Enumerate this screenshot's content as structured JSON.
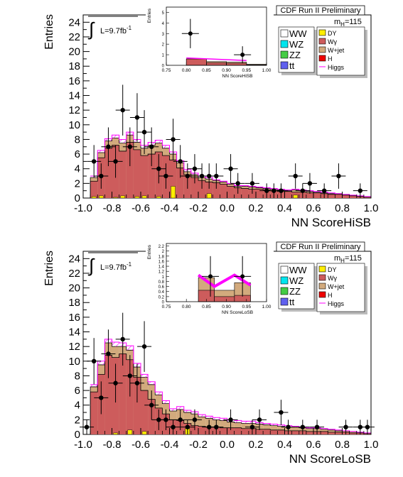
{
  "panels": [
    {
      "header": "CDF Run II Preliminary",
      "lumi_label": "L=9.7fb",
      "lumi_sup": "-1",
      "mass_label": "m",
      "mass_sub": "H",
      "mass_value": "=115",
      "legend_left": [
        "WW",
        "WZ",
        "ZZ",
        "tt"
      ],
      "legend_right": [
        "DY",
        "Wγ",
        "W+jet",
        "H",
        "Higgs"
      ]
    },
    {
      "header": "CDF Run II Preliminary",
      "lumi_label": "L=9.7fb",
      "lumi_sup": "-1",
      "mass_label": "m",
      "mass_sub": "H",
      "mass_value": "=115",
      "legend_left": [
        "WW",
        "WZ",
        "ZZ",
        "tt"
      ],
      "legend_right": [
        "DY",
        "Wγ",
        "W+jet",
        "H",
        "Higgs"
      ]
    }
  ],
  "colors": {
    "ww": "#ffffff",
    "wz": "#00e5ee",
    "zz": "#44cc44",
    "tt": "#6060ee",
    "dy": "#ffee00",
    "wgamma": "#cd5c5c",
    "wjet": "#d2aa7d",
    "h": "#ee0000",
    "higgs": "#ff00ff"
  },
  "chart_data": [
    {
      "type": "histogram",
      "ylabel": "Entries",
      "xlabel": "NN ScoreHiSB",
      "xlim": [
        -1.0,
        1.0
      ],
      "ylim": [
        0,
        25
      ],
      "yticks": [
        "0",
        "2",
        "4",
        "6",
        "8",
        "10",
        "12",
        "14",
        "16",
        "18",
        "20",
        "22",
        "24"
      ],
      "xticks": [
        "-1.0",
        "-0.8",
        "-0.6",
        "-0.4",
        "-0.2",
        "0.0",
        "0.2",
        "0.4",
        "0.6",
        "0.8",
        "1.0"
      ],
      "bin_edges_start": -0.95,
      "bin_width": 0.05,
      "series": [
        {
          "name": "Wγ",
          "values": [
            2.3,
            5.5,
            6.8,
            7.2,
            6.4,
            7.6,
            6.6,
            5.8,
            6.0,
            6.3,
            5.8,
            5.2,
            4.1,
            3.2,
            2.8,
            2.4,
            2.2,
            2.1,
            1.9,
            1.6,
            1.4,
            1.3,
            1.2,
            1.2,
            1.1,
            1.0,
            0.9,
            0.9,
            0.8,
            0.8,
            0.7,
            0.7,
            0.6,
            0.5,
            0.5,
            0.4,
            0.3,
            0.2,
            0.1
          ]
        },
        {
          "name": "DY",
          "values": [
            0.2,
            0.3,
            0,
            0.1,
            0.3,
            0,
            0.2,
            0.3,
            0,
            0.2,
            0,
            1.6,
            0,
            0,
            0,
            0,
            0.6,
            0,
            0,
            0,
            0,
            0,
            0,
            0,
            0,
            0,
            0,
            0,
            0.4,
            0,
            0,
            0,
            0,
            0,
            0,
            0,
            0,
            0,
            0
          ]
        },
        {
          "name": "Total",
          "values": [
            2.8,
            6.2,
            7.8,
            8.2,
            7.5,
            8.6,
            7.6,
            6.8,
            7.2,
            7.5,
            6.8,
            6.0,
            4.8,
            3.6,
            3.2,
            2.8,
            2.6,
            2.4,
            2.2,
            1.9,
            1.6,
            1.6,
            1.5,
            1.4,
            1.3,
            1.2,
            1.1,
            1.0,
            1.1,
            1.0,
            0.9,
            0.8,
            0.7,
            0.6,
            0.6,
            0.5,
            0.4,
            0.3,
            0.2
          ]
        },
        {
          "name": "Higgs",
          "values": [
            3.0,
            6.5,
            8.1,
            8.6,
            8.0,
            9.0,
            8.0,
            7.2,
            7.6,
            7.9,
            7.2,
            6.3,
            5.1,
            3.9,
            3.4,
            3.0,
            2.8,
            2.5,
            2.3,
            2.0,
            1.7,
            1.7,
            1.6,
            1.5,
            1.4,
            1.3,
            1.2,
            1.1,
            1.2,
            1.1,
            1.0,
            0.9,
            0.8,
            0.7,
            0.6,
            0.5,
            0.4,
            0.3,
            0.2
          ]
        }
      ],
      "data_points": [
        {
          "x": -0.925,
          "y": 5.0
        },
        {
          "x": -0.875,
          "y": 3.0
        },
        {
          "x": -0.825,
          "y": 7.0
        },
        {
          "x": -0.775,
          "y": 5.0
        },
        {
          "x": -0.725,
          "y": 12.0
        },
        {
          "x": -0.675,
          "y": 7.0
        },
        {
          "x": -0.625,
          "y": 11.0
        },
        {
          "x": -0.575,
          "y": 9.0
        },
        {
          "x": -0.525,
          "y": 7.0
        },
        {
          "x": -0.475,
          "y": 4.0
        },
        {
          "x": -0.425,
          "y": 3.0
        },
        {
          "x": -0.375,
          "y": 8.0
        },
        {
          "x": -0.325,
          "y": 5.0
        },
        {
          "x": -0.275,
          "y": 3.0
        },
        {
          "x": -0.225,
          "y": 4.0
        },
        {
          "x": -0.175,
          "y": 3.0
        },
        {
          "x": -0.125,
          "y": 3.0
        },
        {
          "x": -0.075,
          "y": 3.0
        },
        {
          "x": 0.025,
          "y": 4.0
        },
        {
          "x": 0.075,
          "y": 2.0
        },
        {
          "x": 0.175,
          "y": 2.0
        },
        {
          "x": 0.275,
          "y": 1.0
        },
        {
          "x": 0.325,
          "y": 1.0
        },
        {
          "x": 0.375,
          "y": 1.0
        },
        {
          "x": 0.475,
          "y": 3.0
        },
        {
          "x": 0.525,
          "y": 1.0
        },
        {
          "x": 0.575,
          "y": 2.0
        },
        {
          "x": 0.675,
          "y": 1.0
        },
        {
          "x": 0.775,
          "y": 3.0
        },
        {
          "x": 0.925,
          "y": 1.0
        }
      ],
      "inset": {
        "xlabel": "NN ScoreHiSB",
        "ylabel": "Entries",
        "xlim": [
          0.75,
          1.0
        ],
        "ylim": [
          0,
          5.5
        ],
        "xticks": [
          "0.75",
          "0.80",
          "0.85",
          "0.90",
          "0.95",
          "1.00"
        ],
        "yticks": [
          "0",
          "1",
          "2",
          "3",
          "4",
          "5"
        ],
        "bins": [
          {
            "x0": 0.8,
            "x1": 0.85,
            "wg": 0.6,
            "tot": 0.6
          },
          {
            "x0": 0.85,
            "x1": 0.9,
            "wg": 0.25,
            "tot": 0.35
          },
          {
            "x0": 0.9,
            "x1": 0.95,
            "wg": 0.2,
            "tot": 0.3
          },
          {
            "x0": 0.95,
            "x1": 1.0,
            "wg": 0.05,
            "tot": 0.1
          }
        ],
        "points": [
          {
            "x": 0.81,
            "y": 3.0
          },
          {
            "x": 0.94,
            "y": 1.0
          }
        ]
      }
    },
    {
      "type": "histogram",
      "ylabel": "Entries",
      "xlabel": "NN ScoreLoSB",
      "xlim": [
        -1.0,
        1.0
      ],
      "ylim": [
        0,
        25
      ],
      "yticks": [
        "0",
        "2",
        "4",
        "6",
        "8",
        "10",
        "12",
        "14",
        "16",
        "18",
        "20",
        "22",
        "24"
      ],
      "xticks": [
        "-1.0",
        "-0.8",
        "-0.6",
        "-0.4",
        "-0.2",
        "0.0",
        "0.2",
        "0.4",
        "0.6",
        "0.8",
        "1.0"
      ],
      "bin_edges_start": -0.95,
      "bin_width": 0.05,
      "series": [
        {
          "name": "Wγ",
          "values": [
            5.8,
            8.2,
            10.8,
            10.5,
            11.0,
            10.2,
            7.8,
            6.0,
            4.8,
            3.6,
            2.8,
            2.0,
            1.9,
            1.5,
            1.2,
            1.1,
            1.0,
            1.0,
            0.9,
            0.9,
            0.9,
            0.8,
            0.8,
            0.7,
            0.7,
            0.6,
            0.6,
            0.5,
            0.5,
            0.5,
            0.4,
            0.4,
            0.4,
            0.3,
            0.3,
            0.3,
            0.2,
            0.2,
            0.1
          ]
        },
        {
          "name": "DY",
          "values": [
            0,
            0,
            0,
            0.2,
            0,
            0.6,
            0,
            0.4,
            0,
            0,
            0,
            0,
            0,
            0.8,
            0,
            0,
            0,
            0,
            0,
            0,
            0,
            0,
            0,
            0,
            0,
            0,
            0,
            0,
            0,
            0,
            0,
            0,
            0,
            0,
            0,
            0,
            0,
            0,
            0
          ]
        },
        {
          "name": "Total",
          "values": [
            6.5,
            9.5,
            12.5,
            12.0,
            12.0,
            11.5,
            9.2,
            7.8,
            6.8,
            5.4,
            4.2,
            3.2,
            3.4,
            3.0,
            2.8,
            2.4,
            2.2,
            2.0,
            1.9,
            1.7,
            1.6,
            1.5,
            1.5,
            1.4,
            1.3,
            1.2,
            1.1,
            1.0,
            1.0,
            0.9,
            0.8,
            0.8,
            0.7,
            0.6,
            0.5,
            0.5,
            0.4,
            0.3,
            0.2
          ]
        },
        {
          "name": "Higgs",
          "values": [
            6.8,
            10.0,
            13.0,
            12.6,
            12.5,
            12.1,
            9.7,
            8.2,
            7.2,
            5.8,
            4.6,
            3.5,
            3.8,
            3.3,
            3.1,
            2.7,
            2.5,
            2.3,
            2.2,
            2.0,
            1.9,
            1.8,
            1.8,
            1.6,
            1.5,
            1.4,
            1.3,
            1.2,
            1.1,
            1.0,
            0.9,
            0.9,
            0.8,
            0.7,
            0.6,
            0.5,
            0.4,
            0.3,
            0.2
          ]
        }
      ],
      "data_points": [
        {
          "x": -0.975,
          "y": 1.0
        },
        {
          "x": -0.925,
          "y": 10.0
        },
        {
          "x": -0.875,
          "y": 5.0
        },
        {
          "x": -0.825,
          "y": 11.0
        },
        {
          "x": -0.775,
          "y": 7.0
        },
        {
          "x": -0.725,
          "y": 13.0
        },
        {
          "x": -0.675,
          "y": 8.0
        },
        {
          "x": -0.625,
          "y": 7.0
        },
        {
          "x": -0.575,
          "y": 12.0
        },
        {
          "x": -0.525,
          "y": 4.0
        },
        {
          "x": -0.475,
          "y": 2.0
        },
        {
          "x": -0.425,
          "y": 2.0
        },
        {
          "x": -0.375,
          "y": 1.0
        },
        {
          "x": -0.325,
          "y": 2.0
        },
        {
          "x": -0.275,
          "y": 1.0
        },
        {
          "x": -0.225,
          "y": 2.0
        },
        {
          "x": -0.125,
          "y": 1.0
        },
        {
          "x": -0.075,
          "y": 1.0
        },
        {
          "x": 0.025,
          "y": 2.0
        },
        {
          "x": 0.175,
          "y": 1.0
        },
        {
          "x": 0.225,
          "y": 2.0
        },
        {
          "x": 0.375,
          "y": 3.0
        },
        {
          "x": 0.425,
          "y": 1.0
        },
        {
          "x": 0.525,
          "y": 1.0
        },
        {
          "x": 0.625,
          "y": 1.0
        },
        {
          "x": 0.825,
          "y": 1.0
        },
        {
          "x": 0.925,
          "y": 1.0
        },
        {
          "x": 0.975,
          "y": 1.0
        }
      ],
      "inset": {
        "xlabel": "NN ScoreLoSB",
        "ylabel": "Entries",
        "xlim": [
          0.75,
          1.0
        ],
        "ylim": [
          0,
          2.3
        ],
        "xticks": [
          "0.75",
          "0.80",
          "0.85",
          "0.90",
          "0.95",
          "1.00"
        ],
        "yticks": [
          "0",
          "0.2",
          "0.4",
          "0.6",
          "0.8",
          "1",
          "1.2",
          "1.4",
          "1.6",
          "1.8",
          "2",
          "2.2"
        ],
        "bins": [
          {
            "x0": 0.83,
            "x1": 0.87,
            "wg": 0.45,
            "tot": 0.95
          },
          {
            "x0": 0.87,
            "x1": 0.92,
            "wg": 0.2,
            "tot": 0.45
          },
          {
            "x0": 0.92,
            "x1": 0.96,
            "wg": 0.25,
            "tot": 0.75
          }
        ],
        "points": [
          {
            "x": 0.86,
            "y": 1.0
          },
          {
            "x": 0.94,
            "y": 1.0
          }
        ],
        "higgs_band": [
          [
            0.83,
            1.05
          ],
          [
            0.87,
            0.6
          ],
          [
            0.92,
            1.05
          ],
          [
            0.96,
            0.65
          ]
        ]
      }
    }
  ]
}
